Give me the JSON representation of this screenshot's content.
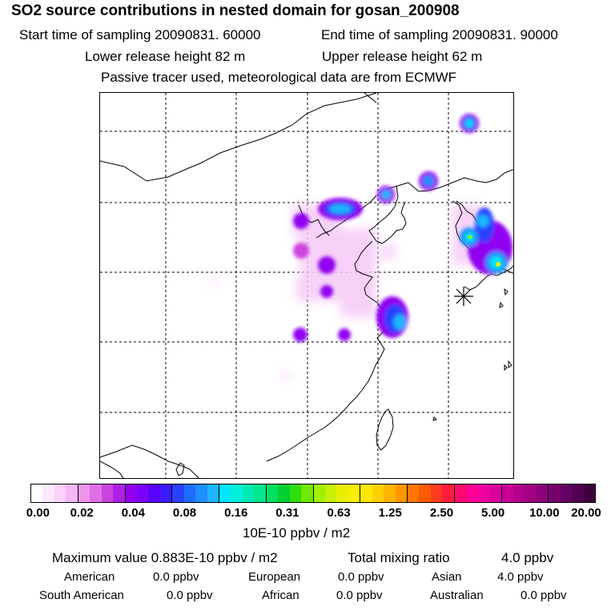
{
  "header": {
    "title": "SO2 source contributions in nested domain for gosan_200908",
    "start_label": "Start time of sampling 20090831. 60000",
    "end_label": "End time of sampling 20090831. 90000",
    "lower_label": "Lower release height   82 m",
    "upper_label": "Upper release height   62 m",
    "tracer_note": "Passive tracer used, meteorological data are from ECMWF"
  },
  "legend": {
    "tick_labels": [
      "0.00",
      "0.02",
      "0.04",
      "0.08",
      "0.16",
      "0.31",
      "0.63",
      "1.25",
      "2.50",
      "5.00",
      "10.00",
      "20.00"
    ],
    "colors": [
      "#ffffff",
      "#fde8fd",
      "#fad2fa",
      "#f5b7f5",
      "#ee96ee",
      "#e06ee6",
      "#cc44dd",
      "#b01ee6",
      "#9400f0",
      "#7a00ff",
      "#5a00ff",
      "#3a1aff",
      "#2a40ff",
      "#1e6cff",
      "#1e90ff",
      "#1eb4ff",
      "#00e6ff",
      "#00f0dc",
      "#00ebb4",
      "#00e68c",
      "#00e060",
      "#00d030",
      "#30dd10",
      "#70e800",
      "#a0f000",
      "#c8f000",
      "#e6f000",
      "#f8f000",
      "#ffe600",
      "#ffd000",
      "#ffb400",
      "#ff9600",
      "#ff7800",
      "#ff5a00",
      "#ff3c1e",
      "#ff1e3c",
      "#ff0a6e",
      "#ff0096",
      "#f000a0",
      "#dc00a0",
      "#c80096",
      "#b4008c",
      "#a00082",
      "#8c0078",
      "#78006e",
      "#640064",
      "#500050",
      "#3c003c"
    ],
    "units": "10E-10 ppbv / m2"
  },
  "summary": {
    "max_label": "Maximum value  0.883E-10 ppbv / m2",
    "total_label": "Total mixing ratio",
    "total_value": "4.0 ppbv",
    "regions": [
      {
        "name": "American",
        "value": "0.0 ppbv"
      },
      {
        "name": "European",
        "value": "0.0 ppbv"
      },
      {
        "name": "Asian",
        "value": "4.0 ppbv"
      },
      {
        "name": "South American",
        "value": "0.0 ppbv"
      },
      {
        "name": "African",
        "value": "0.0 ppbv"
      },
      {
        "name": "Australian",
        "value": "0.0 ppbv"
      }
    ]
  },
  "map": {
    "receptor_marker": "asterisk-marker",
    "hotspots": [
      {
        "label": "north-korea-peak"
      },
      {
        "label": "south-korea-peak"
      }
    ]
  }
}
